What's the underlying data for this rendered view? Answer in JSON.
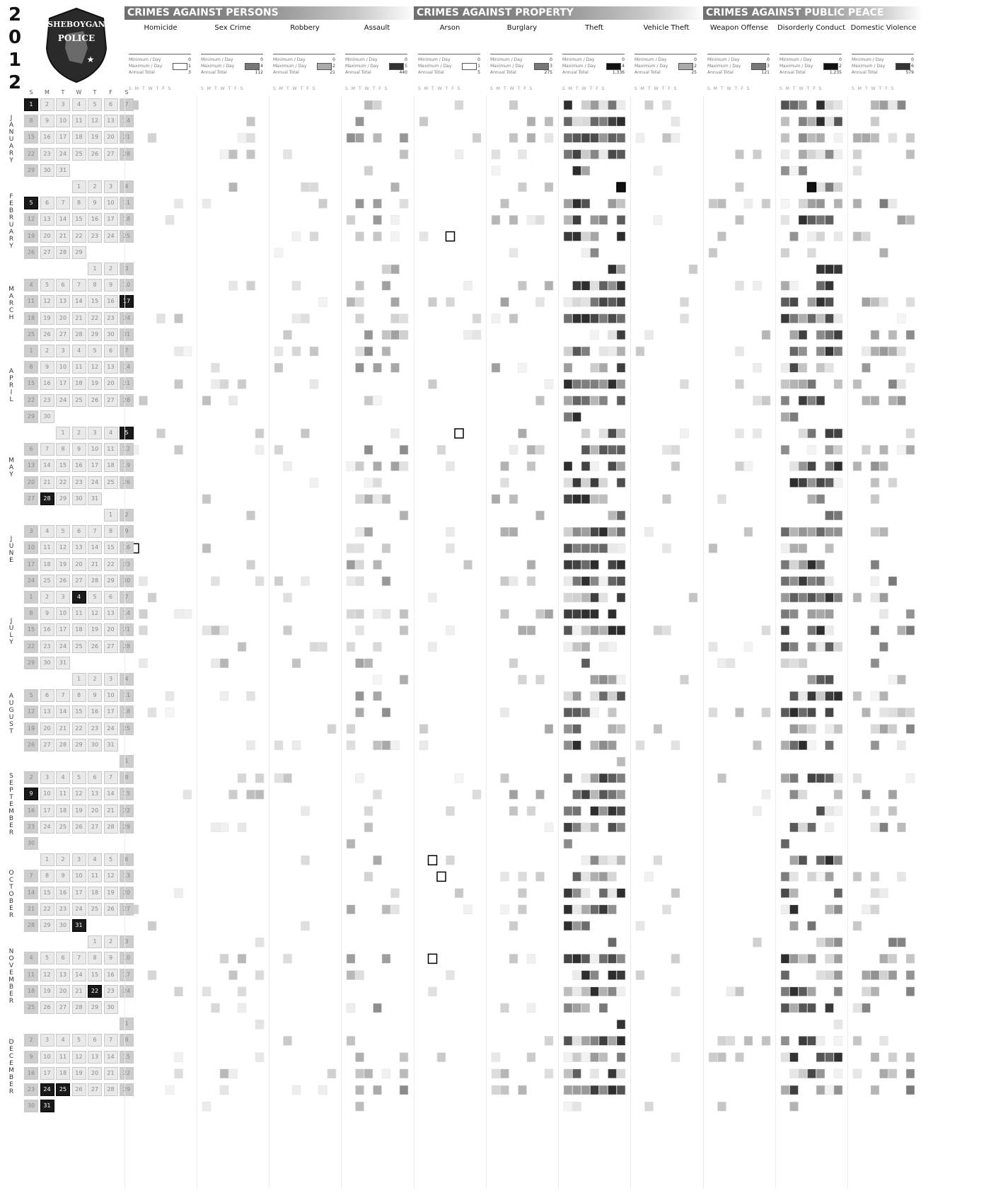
{
  "year_digits": [
    "2",
    "0",
    "1",
    "2"
  ],
  "badge": {
    "line1": "SHEBOYGAN",
    "line2": "POLICE"
  },
  "calendar": {
    "day_headers": [
      "S",
      "M",
      "T",
      "W",
      "T",
      "F",
      "S"
    ],
    "months": [
      {
        "label": "JANUARY",
        "start": 0,
        "days": 31,
        "highlight": [
          1
        ]
      },
      {
        "label": "FEBRUARY",
        "start": 3,
        "days": 29,
        "highlight": [
          5
        ]
      },
      {
        "label": "MARCH",
        "start": 4,
        "days": 31,
        "highlight": [
          17
        ]
      },
      {
        "label": "APRIL",
        "start": 0,
        "days": 30,
        "highlight": []
      },
      {
        "label": "MAY",
        "start": 2,
        "days": 31,
        "highlight": [
          5,
          28
        ]
      },
      {
        "label": "JUNE",
        "start": 5,
        "days": 30,
        "highlight": []
      },
      {
        "label": "JULY",
        "start": 0,
        "days": 31,
        "highlight": [
          4
        ]
      },
      {
        "label": "AUGUST",
        "start": 3,
        "days": 31,
        "highlight": []
      },
      {
        "label": "SEPTEMBER",
        "start": 6,
        "days": 30,
        "highlight": [
          9
        ]
      },
      {
        "label": "OCTOBER",
        "start": 1,
        "days": 31,
        "highlight": [
          31
        ]
      },
      {
        "label": "NOVEMBER",
        "start": 4,
        "days": 30,
        "highlight": [
          22
        ]
      },
      {
        "label": "DECEMBER",
        "start": 6,
        "days": 31,
        "highlight": [
          24,
          25,
          31
        ]
      }
    ]
  },
  "groups": [
    {
      "title": "CRIMES AGAINST PERSONS",
      "columns": [
        "Homicide",
        "Sex Crime",
        "Robbery",
        "Assault"
      ]
    },
    {
      "title": "CRIMES AGAINST PROPERTY",
      "columns": [
        "Arson",
        "Burglary",
        "Theft",
        "Vehicle Theft"
      ]
    },
    {
      "title": "CRIMES AGAINST PUBLIC PEACE",
      "columns": [
        "Weapon Offense",
        "Disorderly Conduct",
        "Domestic Violence"
      ]
    }
  ],
  "stat_labels": {
    "min": "Minimum / Day",
    "max": "Maximum / Day",
    "total": "Annual Total"
  },
  "week_letters": "SMTWTFS",
  "chart_data": {
    "type": "heatmap",
    "title": "",
    "x_categories": [
      "S",
      "M",
      "T",
      "W",
      "T",
      "F",
      "S"
    ],
    "series": [
      {
        "name": "Homicide",
        "min_per_day": 0,
        "max_per_day": 1,
        "annual_total": 3
      },
      {
        "name": "Sex Crime",
        "min_per_day": 0,
        "max_per_day": 4,
        "annual_total": 112
      },
      {
        "name": "Robbery",
        "min_per_day": 0,
        "max_per_day": 2,
        "annual_total": 21
      },
      {
        "name": "Assault",
        "min_per_day": 0,
        "max_per_day": 5,
        "annual_total": 440
      },
      {
        "name": "Arson",
        "min_per_day": 0,
        "max_per_day": 1,
        "annual_total": 5
      },
      {
        "name": "Burglary",
        "min_per_day": 0,
        "max_per_day": 3,
        "annual_total": 275
      },
      {
        "name": "Theft",
        "min_per_day": 0,
        "max_per_day": 14,
        "annual_total": "1,336"
      },
      {
        "name": "Vehicle Theft",
        "min_per_day": 0,
        "max_per_day": 2,
        "annual_total": 25
      },
      {
        "name": "Weapon Offense",
        "min_per_day": 0,
        "max_per_day": 3,
        "annual_total": 121
      },
      {
        "name": "Disorderly Conduct",
        "min_per_day": 0,
        "max_per_day": 12,
        "annual_total": "1,235"
      },
      {
        "name": "Domestic Violence",
        "min_per_day": 0,
        "max_per_day": 6,
        "annual_total": 579
      }
    ],
    "notable_days": [
      {
        "series": "Homicide",
        "date": "June 10",
        "value": 1
      },
      {
        "series": "Arson",
        "date": "February 22",
        "value": 1
      },
      {
        "series": "Arson",
        "date": "May 3",
        "value": 1
      },
      {
        "series": "Arson",
        "date": "October 1",
        "value": 1
      },
      {
        "series": "Arson",
        "date": "October 9",
        "value": 1
      },
      {
        "series": "Arson",
        "date": "November 5",
        "value": 1
      },
      {
        "series": "Theft",
        "date": "February 4",
        "value": 14
      },
      {
        "series": "Disorderly Conduct",
        "date": "February 1",
        "value": 12
      }
    ],
    "color_scale": {
      "low": "#f2f2f2",
      "high": "#111111"
    }
  }
}
